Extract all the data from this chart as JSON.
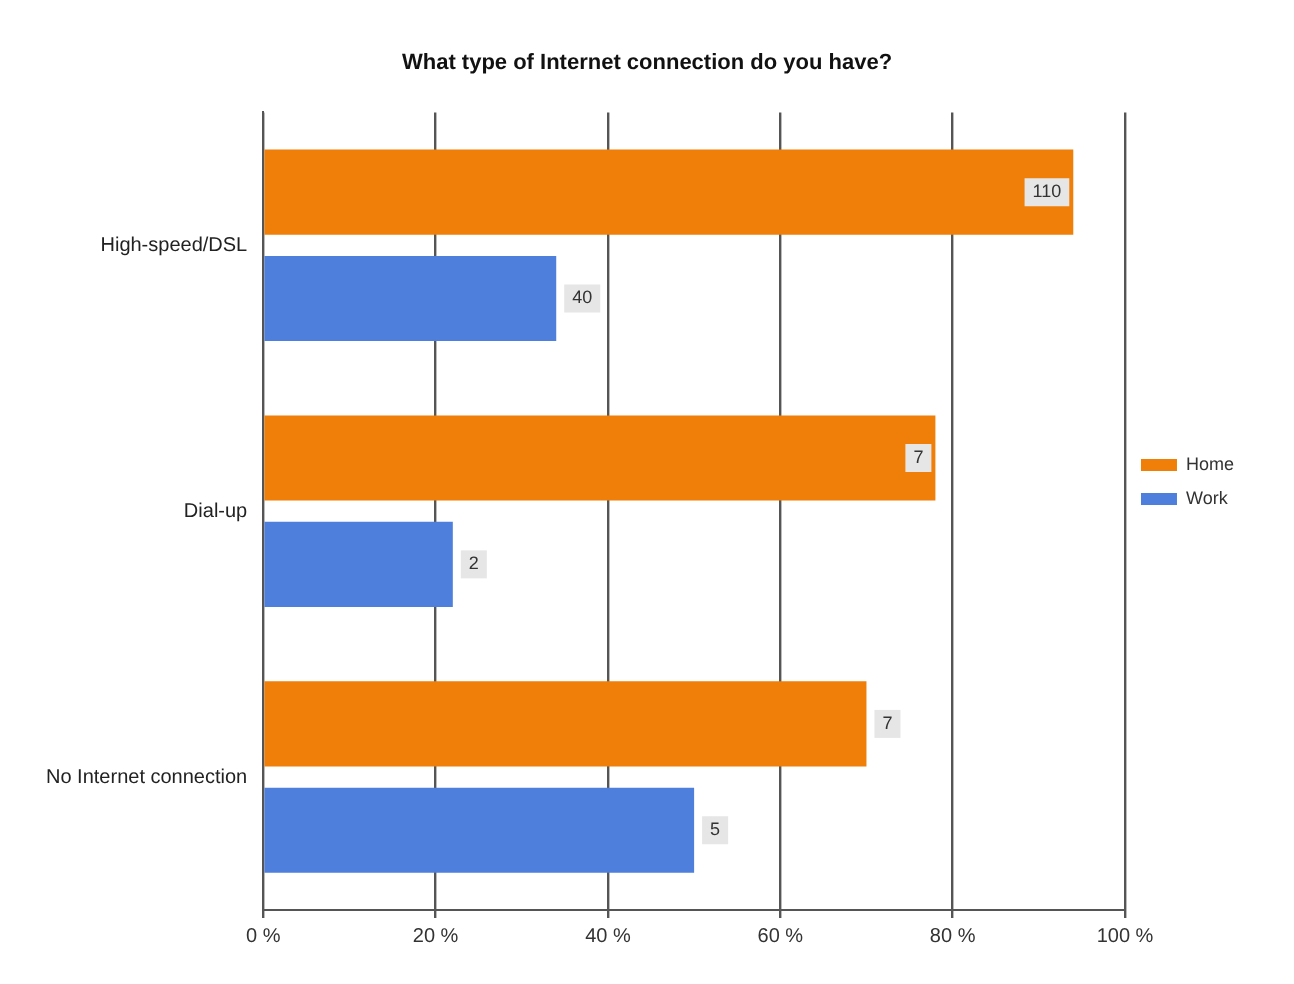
{
  "chart_data": {
    "type": "bar",
    "orientation": "horizontal",
    "title": "What type of Internet connection do you have?",
    "categories": [
      "High-speed/DSL",
      "Dial-up",
      "No Internet connection"
    ],
    "series": [
      {
        "name": "Home",
        "color": "#f07f09",
        "values": [
          94,
          78,
          70
        ]
      },
      {
        "name": "Work",
        "color": "#4f7fdd",
        "values": [
          34,
          22,
          50
        ]
      }
    ],
    "annotations": [
      "110",
      "40",
      "7",
      "2",
      "7",
      "5"
    ],
    "xlim": [
      0,
      100
    ],
    "xticks": [
      {
        "value": 0,
        "label": "0 %"
      },
      {
        "value": 20,
        "label": "20 %"
      },
      {
        "value": 40,
        "label": "40 %"
      },
      {
        "value": 60,
        "label": "60 %"
      },
      {
        "value": 80,
        "label": "80 %"
      },
      {
        "value": 100,
        "label": "100 %"
      }
    ],
    "grid": "x",
    "legend": "right"
  }
}
